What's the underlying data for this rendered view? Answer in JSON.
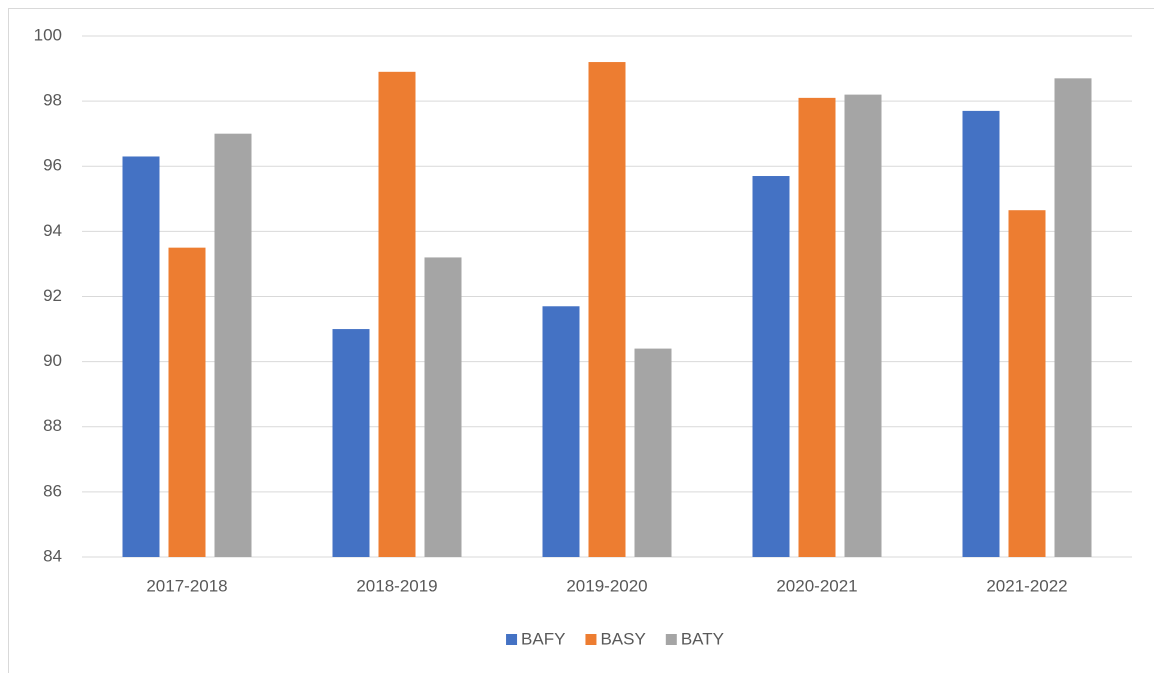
{
  "chart_data": {
    "type": "bar",
    "categories": [
      "2017-2018",
      "2018-2019",
      "2019-2020",
      "2020-2021",
      "2021-2022"
    ],
    "series": [
      {
        "name": "BAFY",
        "color": "#4472c4",
        "values": [
          96.3,
          91.0,
          91.7,
          95.7,
          97.7
        ]
      },
      {
        "name": "BASY",
        "color": "#ed7d31",
        "values": [
          93.5,
          98.9,
          99.2,
          98.1,
          94.65
        ]
      },
      {
        "name": "BATY",
        "color": "#a5a5a5",
        "values": [
          97.0,
          93.2,
          90.4,
          98.2,
          98.7
        ]
      }
    ],
    "ylim": [
      84,
      100
    ],
    "yticks": [
      84,
      86,
      88,
      90,
      92,
      94,
      96,
      98,
      100
    ],
    "grid": true,
    "legend": "bottom"
  }
}
